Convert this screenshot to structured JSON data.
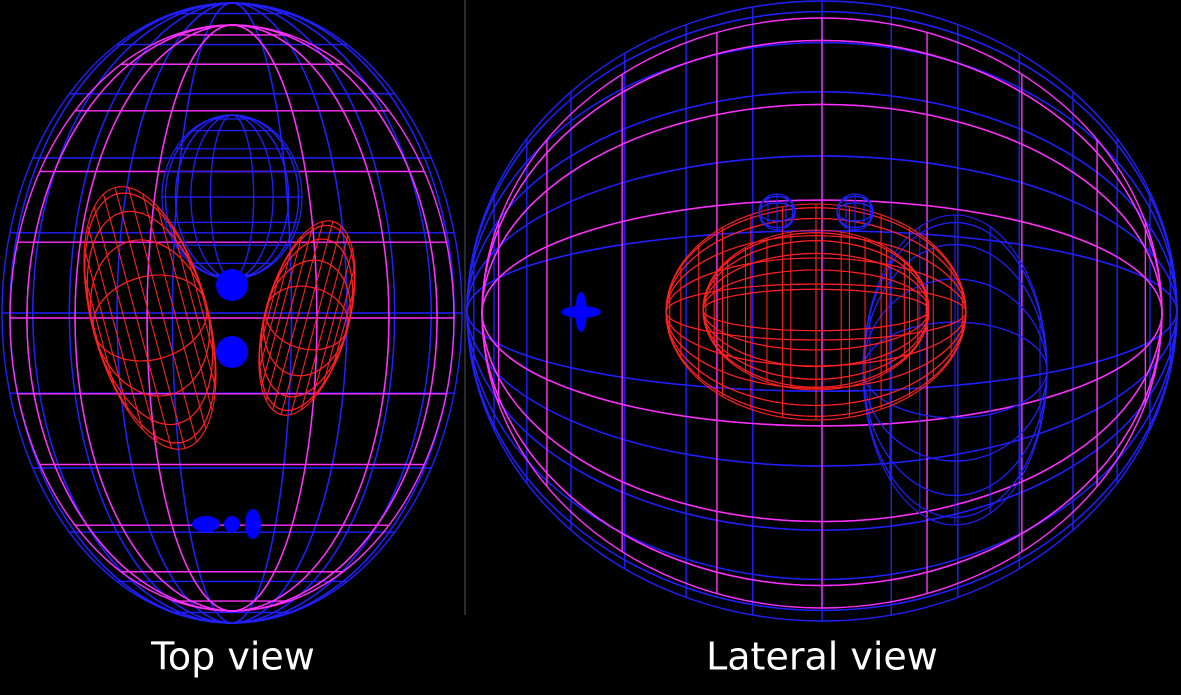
{
  "panels": [
    {
      "label": "Top view"
    },
    {
      "label": "Lateral view"
    }
  ]
}
